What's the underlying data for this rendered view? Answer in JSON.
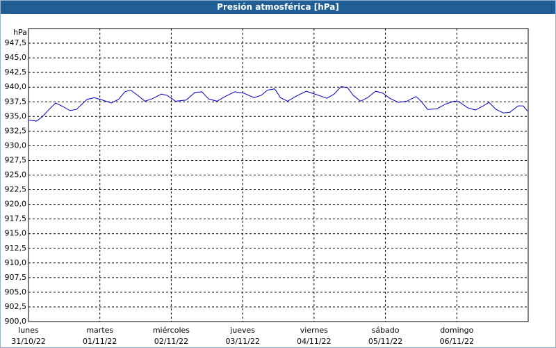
{
  "chart_data": {
    "type": "line",
    "title": "Presión atmosférica [hPa]",
    "y_label": "hPa",
    "xlim": [
      0,
      7
    ],
    "ylim": [
      900,
      950
    ],
    "grid": true,
    "xticks": [
      {
        "value": 0,
        "label": "lunes",
        "date": "31/10/22"
      },
      {
        "value": 1,
        "label": "martes",
        "date": "01/11/22"
      },
      {
        "value": 2,
        "label": "miércoles",
        "date": "02/11/22"
      },
      {
        "value": 3,
        "label": "jueves",
        "date": "03/11/22"
      },
      {
        "value": 4,
        "label": "viernes",
        "date": "04/11/22"
      },
      {
        "value": 5,
        "label": "sábado",
        "date": "05/11/22"
      },
      {
        "value": 6,
        "label": "domingo",
        "date": "06/11/22"
      }
    ],
    "yticks": [
      {
        "value": 900,
        "label": "900,0"
      },
      {
        "value": 902.5,
        "label": "902,5"
      },
      {
        "value": 905,
        "label": "905,0"
      },
      {
        "value": 907.5,
        "label": "907,5"
      },
      {
        "value": 910,
        "label": "910,0"
      },
      {
        "value": 912.5,
        "label": "912,5"
      },
      {
        "value": 915,
        "label": "915,0"
      },
      {
        "value": 917.5,
        "label": "917,5"
      },
      {
        "value": 920,
        "label": "920,0"
      },
      {
        "value": 922.5,
        "label": "922,5"
      },
      {
        "value": 925,
        "label": "925,0"
      },
      {
        "value": 927.5,
        "label": "927,5"
      },
      {
        "value": 930,
        "label": "930,0"
      },
      {
        "value": 932.5,
        "label": "932,5"
      },
      {
        "value": 935,
        "label": "935,0"
      },
      {
        "value": 937.5,
        "label": "937,5"
      },
      {
        "value": 940,
        "label": "940,0"
      },
      {
        "value": 942.5,
        "label": "942,5"
      },
      {
        "value": 945,
        "label": "945,0"
      },
      {
        "value": 947.5,
        "label": "947,5"
      }
    ],
    "x": [
      0,
      0.11,
      0.19,
      0.28,
      0.38,
      0.48,
      0.58,
      0.67,
      0.82,
      0.92,
      1.01,
      1.16,
      1.26,
      1.35,
      1.43,
      1.53,
      1.63,
      1.73,
      1.86,
      1.94,
      2.06,
      2.21,
      2.33,
      2.43,
      2.52,
      2.64,
      2.77,
      2.89,
      3.01,
      3.16,
      3.26,
      3.35,
      3.45,
      3.53,
      3.63,
      3.74,
      3.89,
      4.04,
      4.18,
      4.28,
      4.38,
      4.47,
      4.55,
      4.65,
      4.75,
      4.86,
      4.96,
      5.06,
      5.18,
      5.3,
      5.43,
      5.5,
      5.59,
      5.72,
      5.84,
      5.96,
      6.03,
      6.15,
      6.26,
      6.37,
      6.45,
      6.55,
      6.65,
      6.74,
      6.86,
      6.93,
      6.99
    ],
    "series": [
      {
        "color": "#0000c0",
        "values": [
          934.4,
          934.2,
          934.9,
          936.1,
          937.3,
          936.7,
          936.0,
          936.2,
          937.9,
          938.2,
          937.9,
          937.3,
          937.9,
          939.2,
          939.5,
          938.6,
          937.6,
          938.0,
          938.8,
          938.6,
          937.6,
          937.8,
          939.1,
          939.2,
          938.0,
          937.6,
          938.5,
          939.2,
          939.0,
          938.2,
          938.6,
          939.5,
          939.7,
          938.2,
          937.6,
          938.4,
          939.3,
          938.7,
          938.1,
          938.8,
          940.1,
          939.9,
          938.6,
          937.6,
          938.2,
          939.3,
          939.0,
          938.1,
          937.4,
          937.6,
          938.4,
          937.6,
          936.2,
          936.3,
          937.1,
          937.6,
          937.5,
          936.5,
          936.1,
          936.8,
          937.4,
          936.2,
          935.6,
          935.7,
          936.8,
          936.8,
          935.9
        ]
      }
    ]
  }
}
